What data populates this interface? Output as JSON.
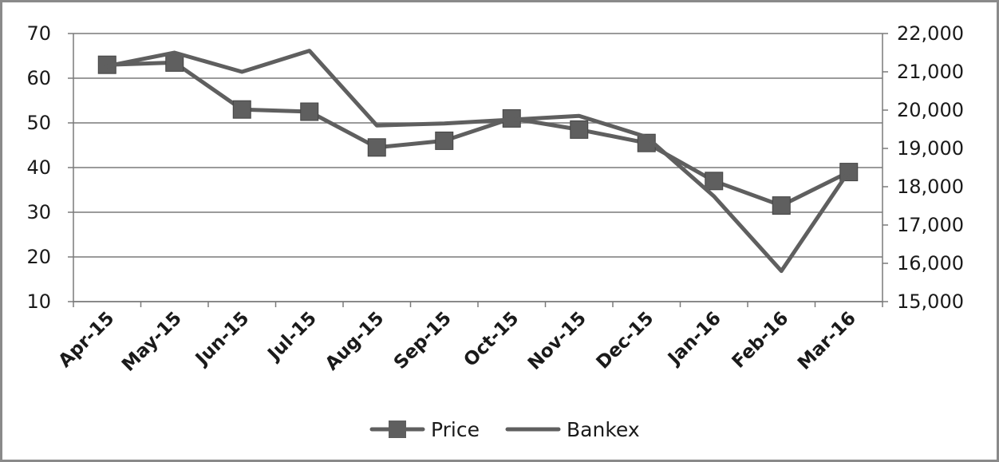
{
  "chart_data": {
    "type": "line",
    "categories": [
      "Apr-15",
      "May-15",
      "Jun-15",
      "Jul-15",
      "Aug-15",
      "Sep-15",
      "Oct-15",
      "Nov-15",
      "Dec-15",
      "Jan-16",
      "Feb-16",
      "Mar-16"
    ],
    "series": [
      {
        "name": "Price",
        "axis": "left",
        "marker": "square",
        "color": "#5f5f5f",
        "values": [
          63,
          63.5,
          53,
          52.5,
          44.5,
          46,
          51,
          48.5,
          45.5,
          37,
          31.5,
          39
        ]
      },
      {
        "name": "Bankex",
        "axis": "right",
        "marker": "none",
        "color": "#5f5f5f",
        "values": [
          21150,
          21500,
          21000,
          21550,
          19600,
          19650,
          19750,
          19850,
          19300,
          17750,
          15800,
          18400
        ]
      }
    ],
    "y_left": {
      "min": 10,
      "max": 70,
      "ticks": [
        "70",
        "60",
        "50",
        "40",
        "30",
        "20",
        "10"
      ]
    },
    "y_right": {
      "min": 15000,
      "max": 22000,
      "ticks": [
        "22,000",
        "21,000",
        "20,000",
        "19,000",
        "18,000",
        "17,000",
        "16,000",
        "15,000"
      ]
    },
    "grid": true,
    "legend": {
      "position": "bottom",
      "items": [
        "Price",
        "Bankex"
      ]
    }
  }
}
